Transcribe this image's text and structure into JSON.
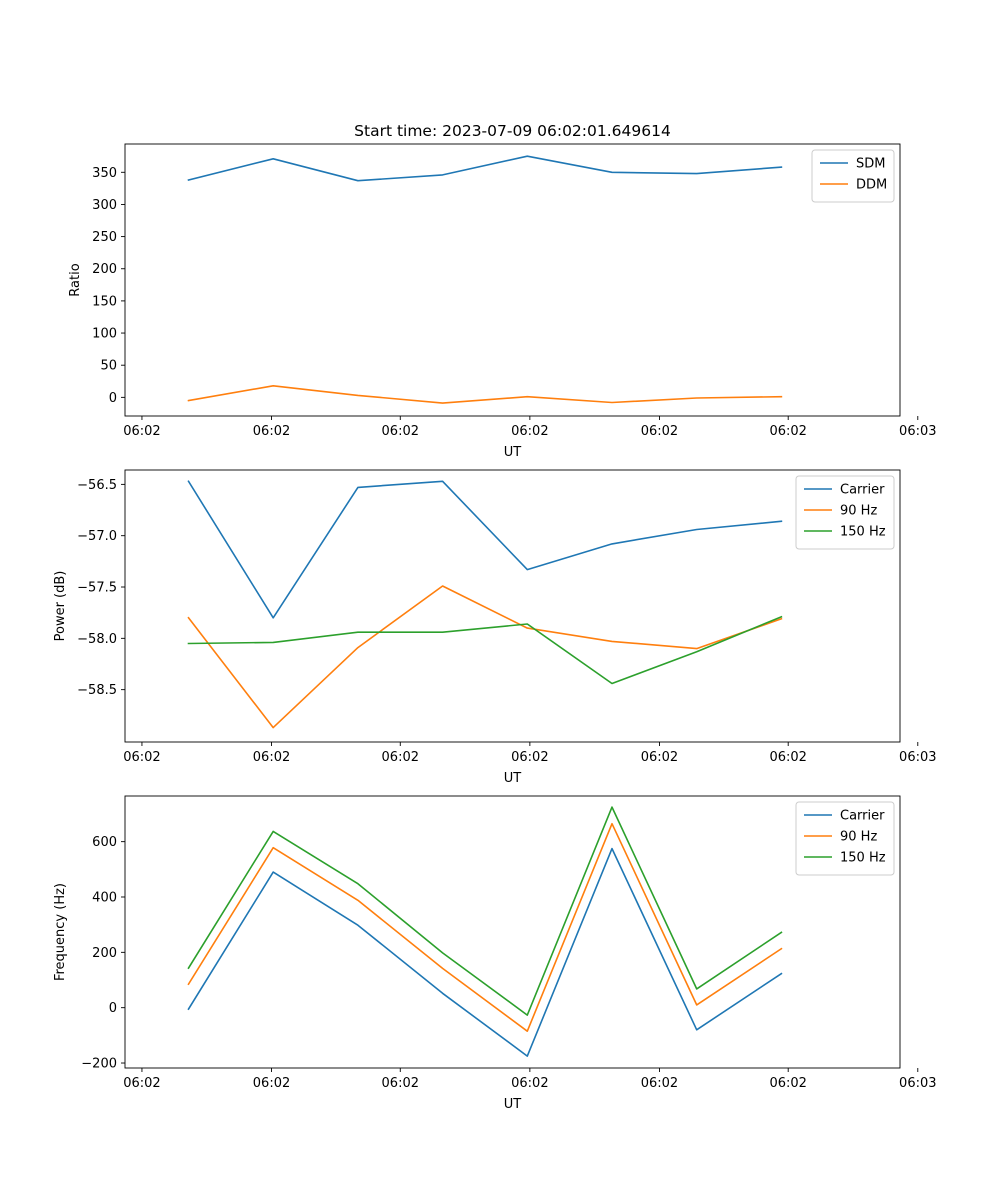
{
  "figure_title": "Start time: 2023-07-09 06:02:01.649614",
  "colors": {
    "blue": "#1f77b4",
    "orange": "#ff7f0e",
    "green": "#2ca02c"
  },
  "chart_data": [
    {
      "type": "line",
      "title": "Start time: 2023-07-09 06:02:01.649614",
      "xlabel": "UT",
      "ylabel": "Ratio",
      "x": [
        1,
        2,
        3,
        4,
        5,
        6,
        7,
        8
      ],
      "xlim": [
        0.25,
        9.4
      ],
      "x_ticks": [
        0.45,
        1.98,
        3.5,
        5.03,
        6.56,
        8.08,
        9.61
      ],
      "x_tick_labels": [
        "06:02",
        "06:02",
        "06:02",
        "06:02",
        "06:02",
        "06:02",
        "06:03"
      ],
      "ylim": [
        -29,
        394
      ],
      "y_ticks": [
        0,
        50,
        100,
        150,
        200,
        250,
        300,
        350
      ],
      "y_tick_labels": [
        "0",
        "50",
        "100",
        "150",
        "200",
        "250",
        "300",
        "350"
      ],
      "legend": "top-right",
      "series": [
        {
          "name": "SDM",
          "color": "#1f77b4",
          "values": [
            338,
            371,
            337,
            346,
            375,
            350,
            348,
            358
          ]
        },
        {
          "name": "DDM",
          "color": "#ff7f0e",
          "values": [
            -5,
            18,
            3,
            -9,
            1,
            -8,
            -1,
            1
          ]
        }
      ]
    },
    {
      "type": "line",
      "title": "",
      "xlabel": "UT",
      "ylabel": "Power (dB)",
      "x": [
        1,
        2,
        3,
        4,
        5,
        6,
        7,
        8
      ],
      "xlim": [
        0.25,
        9.4
      ],
      "x_ticks": [
        0.45,
        1.98,
        3.5,
        5.03,
        6.56,
        8.08,
        9.61
      ],
      "x_tick_labels": [
        "06:02",
        "06:02",
        "06:02",
        "06:02",
        "06:02",
        "06:02",
        "06:03"
      ],
      "ylim": [
        -59.01,
        -56.36
      ],
      "y_ticks": [
        -58.5,
        -58.0,
        -57.5,
        -57.0,
        -56.5
      ],
      "y_tick_labels": [
        "−58.5",
        "−58.0",
        "−57.5",
        "−57.0",
        "−56.5"
      ],
      "legend": "top-right",
      "series": [
        {
          "name": "Carrier",
          "color": "#1f77b4",
          "values": [
            -56.47,
            -57.8,
            -56.53,
            -56.47,
            -57.33,
            -57.08,
            -56.94,
            -56.86
          ]
        },
        {
          "name": "90 Hz",
          "color": "#ff7f0e",
          "values": [
            -57.8,
            -58.87,
            -58.09,
            -57.49,
            -57.9,
            -58.03,
            -58.1,
            -57.81
          ]
        },
        {
          "name": "150 Hz",
          "color": "#2ca02c",
          "values": [
            -58.05,
            -58.04,
            -57.94,
            -57.94,
            -57.86,
            -58.44,
            -58.13,
            -57.79
          ]
        }
      ]
    },
    {
      "type": "line",
      "title": "",
      "xlabel": "UT",
      "ylabel": "Frequency (Hz)",
      "x": [
        1,
        2,
        3,
        4,
        5,
        6,
        7,
        8
      ],
      "xlim": [
        0.25,
        9.4
      ],
      "x_ticks": [
        0.45,
        1.98,
        3.5,
        5.03,
        6.56,
        8.08,
        9.61
      ],
      "x_tick_labels": [
        "06:02",
        "06:02",
        "06:02",
        "06:02",
        "06:02",
        "06:02",
        "06:03"
      ],
      "ylim": [
        -218,
        765
      ],
      "y_ticks": [
        -200,
        0,
        200,
        400,
        600
      ],
      "y_tick_labels": [
        "−200",
        "0",
        "200",
        "400",
        "600"
      ],
      "legend": "top-right",
      "series": [
        {
          "name": "Carrier",
          "color": "#1f77b4",
          "values": [
            -5,
            490,
            298,
            52,
            -175,
            575,
            -80,
            123
          ]
        },
        {
          "name": "90 Hz",
          "color": "#ff7f0e",
          "values": [
            85,
            578,
            388,
            142,
            -85,
            665,
            10,
            213
          ]
        },
        {
          "name": "150 Hz",
          "color": "#2ca02c",
          "values": [
            143,
            637,
            448,
            198,
            -27,
            725,
            68,
            272
          ]
        }
      ]
    }
  ]
}
